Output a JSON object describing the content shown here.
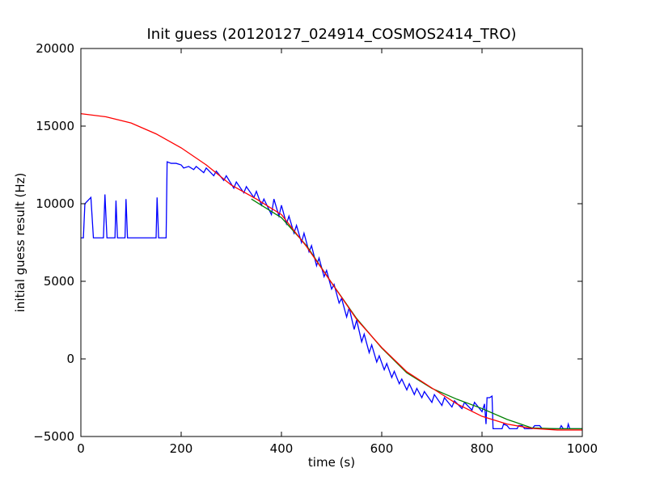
{
  "chart_data": {
    "type": "line",
    "title": "Init guess (20120127_024914_COSMOS2414_TRO)",
    "xlabel": "time (s)",
    "ylabel": "initial guess result (Hz)",
    "xlim": [
      0,
      1000
    ],
    "ylim": [
      -5000,
      20000
    ],
    "xticks": [
      0,
      200,
      400,
      600,
      800,
      1000
    ],
    "yticks": [
      {
        "value": -5000,
        "label": "−5000"
      },
      0,
      5000,
      10000,
      15000,
      20000
    ],
    "series": [
      {
        "color": "#0000ff",
        "x": [
          0,
          5,
          8,
          20,
          25,
          45,
          48,
          52,
          68,
          70,
          73,
          88,
          90,
          93,
          150,
          152,
          155,
          170,
          172,
          180,
          190,
          200,
          205,
          215,
          225,
          230,
          245,
          250,
          265,
          270,
          285,
          290,
          305,
          310,
          325,
          330,
          345,
          350,
          360,
          365,
          380,
          385,
          395,
          400,
          410,
          415,
          425,
          430,
          440,
          445,
          455,
          460,
          470,
          475,
          485,
          490,
          500,
          505,
          515,
          520,
          530,
          535,
          545,
          550,
          560,
          565,
          575,
          580,
          590,
          595,
          605,
          610,
          620,
          625,
          635,
          640,
          650,
          655,
          665,
          670,
          680,
          685,
          700,
          705,
          720,
          725,
          740,
          745,
          760,
          765,
          780,
          785,
          800,
          805,
          808,
          810,
          815,
          820,
          822,
          840,
          843,
          850,
          855,
          870,
          873,
          880,
          885,
          900,
          905,
          915,
          920,
          955,
          958,
          962,
          970,
          972,
          975,
          1000
        ],
        "values": [
          7800,
          7800,
          10000,
          10400,
          7800,
          7800,
          10600,
          7800,
          7800,
          10200,
          7800,
          7800,
          10300,
          7800,
          7800,
          10400,
          7800,
          7800,
          12700,
          12600,
          12600,
          12500,
          12300,
          12400,
          12200,
          12400,
          12000,
          12300,
          11800,
          12100,
          11500,
          11800,
          11000,
          11400,
          10700,
          11100,
          10400,
          10800,
          9900,
          10300,
          9300,
          10300,
          9200,
          9900,
          8700,
          9200,
          8100,
          8600,
          7500,
          8100,
          6900,
          7300,
          6000,
          6500,
          5300,
          5700,
          4500,
          4800,
          3600,
          3900,
          2700,
          3300,
          1900,
          2500,
          1100,
          1600,
          400,
          900,
          -200,
          200,
          -700,
          -300,
          -1200,
          -800,
          -1600,
          -1300,
          -2000,
          -1600,
          -2300,
          -1900,
          -2500,
          -2100,
          -2800,
          -2300,
          -3000,
          -2500,
          -3100,
          -2700,
          -3200,
          -2800,
          -3300,
          -2800,
          -3400,
          -2900,
          -4200,
          -2500,
          -2500,
          -2400,
          -4500,
          -4500,
          -4200,
          -4300,
          -4500,
          -4500,
          -4300,
          -4300,
          -4500,
          -4500,
          -4300,
          -4300,
          -4500,
          -4500,
          -4300,
          -4500,
          -4500,
          -4200,
          -4500,
          -4500
        ]
      },
      {
        "color": "#008000",
        "x": [
          340,
          400,
          450,
          500,
          550,
          600,
          650,
          700,
          750,
          800,
          850,
          900,
          950,
          1000
        ],
        "values": [
          10300,
          9100,
          7300,
          4900,
          2600,
          700,
          -900,
          -1900,
          -2600,
          -3200,
          -3900,
          -4450,
          -4500,
          -4500
        ]
      },
      {
        "color": "#ff0000",
        "x": [
          0,
          50,
          100,
          150,
          200,
          250,
          300,
          350,
          400,
          450,
          500,
          550,
          600,
          650,
          700,
          750,
          800,
          850,
          900,
          950,
          1000
        ],
        "values": [
          15800,
          15600,
          15200,
          14500,
          13600,
          12500,
          11200,
          10300,
          9300,
          7240,
          4900,
          2550,
          730,
          -830,
          -1875,
          -2900,
          -3700,
          -4200,
          -4480,
          -4580,
          -4580
        ]
      }
    ]
  }
}
